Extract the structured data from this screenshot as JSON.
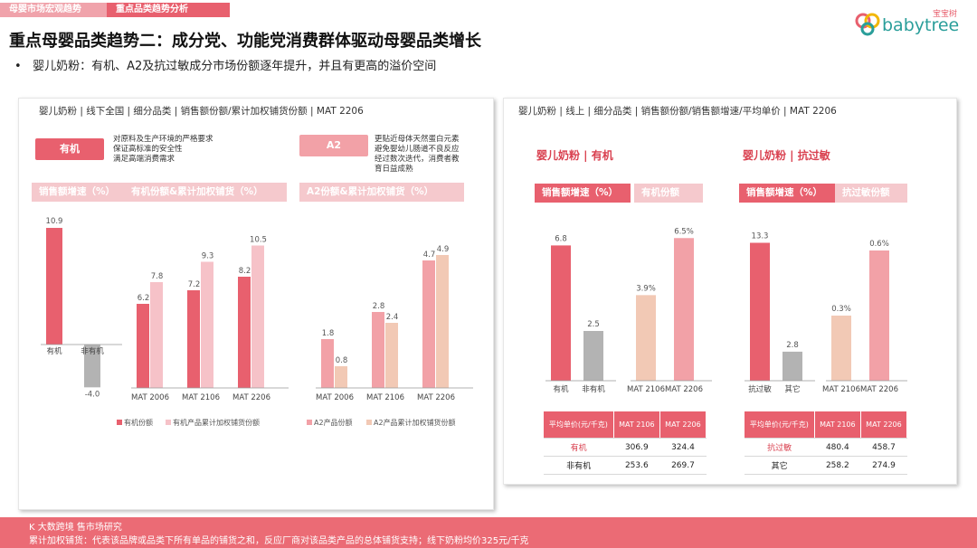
{
  "tabs": [
    "母婴市场宏观趋势",
    "重点品类趋势分析"
  ],
  "logo": {
    "text": "babytree",
    "cn": "宝宝树"
  },
  "title": "重点母婴品类趋势二：成分党、功能党消费群体驱动母婴品类增长",
  "subtitle": "婴儿奶粉：有机、A2及抗过敏成分市场份额逐年提升，并且有更高的溢价空间",
  "colors": {
    "primary": "#e8606e",
    "light": "#f6c2c8",
    "tan": "#f2c9b5",
    "gray": "#b3b3b3",
    "strip": "#f5c9cd"
  },
  "left_panel": {
    "header": "婴儿奶粉 | 线下全国 | 细分品类 | 销售额份额/累计加权铺货份额 | MAT 2206",
    "organic_tag": "有机",
    "organic_note": [
      "对原料及生产环境的严格要求",
      "保证高标准的安全性",
      "满足高端消费需求"
    ],
    "a2_tag": "A2",
    "a2_note": [
      "更贴近母体天然蛋白元素",
      "避免婴幼儿肠道不良反应",
      "经过数次迭代，消费者教",
      "育日益成熟"
    ],
    "strip1": "销售额增速（%）",
    "strip2": "有机份额&累计加权铺货（%）",
    "strip3": "A2份额&累计加权铺货（%）",
    "legend_organic": [
      "有机份额",
      "有机产品累计加权铺货份额"
    ],
    "legend_a2": [
      "A2产品份额",
      "A2产品累计加权铺货份额"
    ]
  },
  "right_panel": {
    "header": "婴儿奶粉 | 线上 | 细分品类 | 销售额份额/销售额增速/平均单价 | MAT 2206",
    "title1": "婴儿奶粉 | 有机",
    "title2": "婴儿奶粉 | 抗过敏",
    "strip1a": "销售额增速（%）",
    "strip1b": "有机份额",
    "strip2a": "销售额增速（%）",
    "strip2b": "抗过敏份额",
    "table1": {
      "header": [
        "平均单价(元/千克)",
        "MAT 2106",
        "MAT 2206"
      ],
      "rows": [
        [
          "有机",
          "306.9",
          "324.4"
        ],
        [
          "非有机",
          "253.6",
          "269.7"
        ]
      ]
    },
    "table2": {
      "header": [
        "平均单价(元/千克)",
        "MAT 2106",
        "MAT 2206"
      ],
      "rows": [
        [
          "抗过敏",
          "480.4",
          "458.7"
        ],
        [
          "其它",
          "258.2",
          "274.9"
        ]
      ]
    }
  },
  "footer": {
    "line1": "K 大数跨境 售市场研究",
    "line2": "累计加权铺货：代表该品牌或品类下所有单品的铺货之和，反应厂商对该品类产品的总体铺货支持；线下奶粉均价325元/千克"
  },
  "chart_data": [
    {
      "type": "bar",
      "title": "销售额增速（%）",
      "categories": [
        "有机",
        "非有机"
      ],
      "values": [
        10.9,
        -4.0
      ],
      "colors": [
        "#e8606e",
        "#b3b3b3"
      ],
      "ylim": [
        -5,
        12
      ]
    },
    {
      "type": "bar",
      "title": "有机份额&累计加权铺货（%）",
      "categories": [
        "MAT 2006",
        "MAT 2106",
        "MAT 2206"
      ],
      "series": [
        {
          "name": "有机份额",
          "values": [
            6.2,
            7.2,
            8.2
          ],
          "color": "#e8606e"
        },
        {
          "name": "有机产品累计加权铺货份额",
          "values": [
            7.8,
            9.3,
            10.5
          ],
          "color": "#f6c2c8"
        }
      ],
      "ylim": [
        0,
        12
      ]
    },
    {
      "type": "bar",
      "title": "A2份额&累计加权铺货（%）",
      "categories": [
        "MAT 2006",
        "MAT 2106",
        "MAT 2206"
      ],
      "series": [
        {
          "name": "A2产品份额",
          "values": [
            1.8,
            2.8,
            4.7
          ],
          "color": "#f2a1a7"
        },
        {
          "name": "A2产品累计加权铺货份额",
          "values": [
            0.8,
            2.4,
            4.9
          ],
          "color": "#f2c9b5"
        }
      ],
      "ylim": [
        0,
        6
      ]
    },
    {
      "type": "bar",
      "title": "婴儿奶粉 | 有机 销售额增速（%）",
      "categories": [
        "有机",
        "非有机"
      ],
      "values": [
        6.8,
        2.5
      ],
      "colors": [
        "#e8606e",
        "#b3b3b3"
      ],
      "ylim": [
        0,
        8
      ]
    },
    {
      "type": "bar",
      "title": "有机份额",
      "categories": [
        "MAT 2106",
        "MAT 2206"
      ],
      "values": [
        3.9,
        6.5
      ],
      "value_labels": [
        "3.9%",
        "6.5%"
      ],
      "colors": [
        "#f2c9b5",
        "#f2a1a7"
      ],
      "ylim": [
        0,
        7.5
      ]
    },
    {
      "type": "bar",
      "title": "婴儿奶粉 | 抗过敏 销售额增速（%）",
      "categories": [
        "抗过敏",
        "其它"
      ],
      "values": [
        13.3,
        2.8
      ],
      "colors": [
        "#e8606e",
        "#b3b3b3"
      ],
      "ylim": [
        0,
        15
      ]
    },
    {
      "type": "bar",
      "title": "抗过敏份额",
      "categories": [
        "MAT 2106",
        "MAT 2206"
      ],
      "values": [
        0.3,
        0.6
      ],
      "value_labels": [
        "0.3%",
        "0.6%"
      ],
      "colors": [
        "#f2c9b5",
        "#f2a1a7"
      ],
      "ylim": [
        0,
        0.7
      ]
    }
  ]
}
